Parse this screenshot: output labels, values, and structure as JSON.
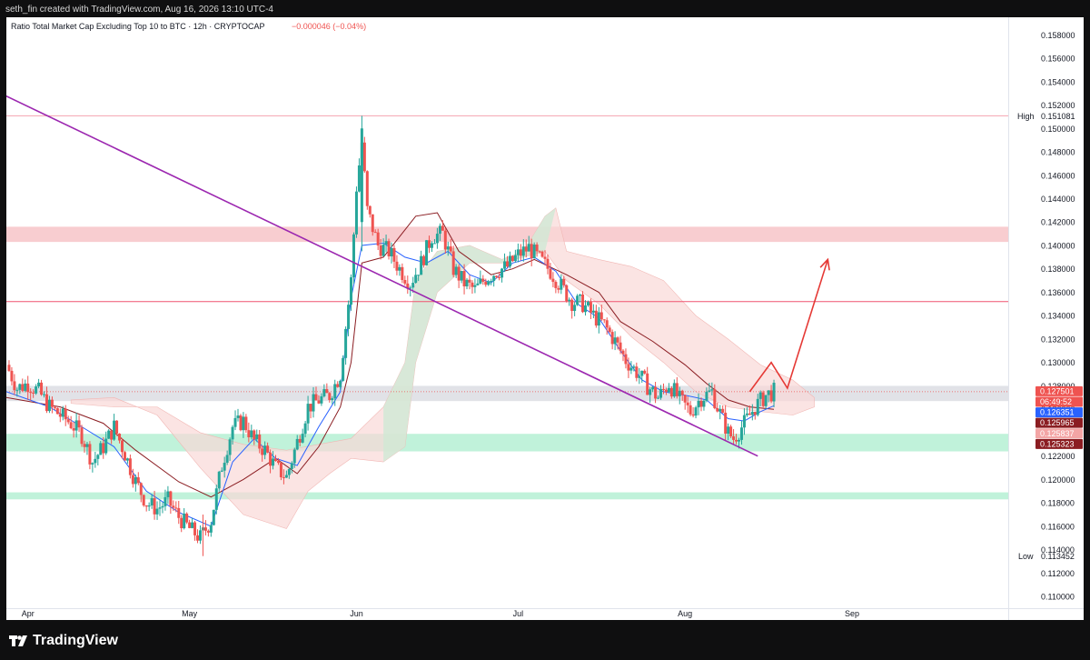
{
  "header": {
    "created_text": "seth_fin created with TradingView.com, Aug 16, 2026 13:10 UTC-4"
  },
  "footer": {
    "brand": "TradingView"
  },
  "colors": {
    "up": "#26a69a",
    "down": "#ef5350",
    "trendline": "#9c27b0",
    "arrow": "#e53935",
    "resistance_zone": "#f7c4c8",
    "support_zone": "#b5f0d4",
    "pivot_zone": "#dcdde3",
    "conversion_line": "#2962ff",
    "base_line": "#8b1d22",
    "cloud_bull": "#cfe9d4",
    "cloud_bear": "#f9d8d7"
  },
  "chart_data": {
    "type": "candlestick",
    "title": "Ratio Total Market Cap Excluding Top 10 to BTC · 12h · CRYPTOCAP",
    "change_text": "−0.000046 (−0.04%)",
    "x_ticks": [
      "Apr",
      "May",
      "Jun",
      "Jul",
      "Aug",
      "Sep"
    ],
    "x_tick_days": [
      0,
      30,
      61,
      91,
      122,
      153
    ],
    "x_range_days": [
      -4,
      182
    ],
    "ylim": [
      0.109,
      0.1595
    ],
    "y_ticks": [
      0.11,
      0.112,
      0.114,
      0.116,
      0.118,
      0.12,
      0.122,
      0.124,
      0.126,
      0.128,
      0.13,
      0.132,
      0.134,
      0.136,
      0.138,
      0.14,
      0.142,
      0.144,
      0.146,
      0.148,
      0.15,
      0.152,
      0.154,
      0.156,
      0.158
    ],
    "y_tick_labels": [
      "0.110000",
      "0.112000",
      "0.114000",
      "0.116000",
      "0.118000",
      "0.120000",
      "0.122000",
      "0.124000",
      "0.126000",
      "0.128000",
      "0.130000",
      "0.132000",
      "0.134000",
      "0.136000",
      "0.138000",
      "0.140000",
      "0.142000",
      "0.144000",
      "0.146000",
      "0.148000",
      "0.150000",
      "0.152000",
      "0.154000",
      "0.156000",
      "0.158000"
    ],
    "high": {
      "label": "High",
      "value_text": "0.151081",
      "value": 0.151081
    },
    "low": {
      "label": "Low",
      "value_text": "0.113452",
      "value": 0.113452
    },
    "price_labels": [
      {
        "text": "0.127501",
        "value": 0.127501,
        "color": "#ef5350"
      },
      {
        "text": "06:49:52",
        "value": 0.1264,
        "color": "#ef5350"
      },
      {
        "text": "0.126351",
        "value": 0.126351,
        "color": "#2962ff"
      },
      {
        "text": "0.125965",
        "value": 0.125965,
        "color": "#8b1d22"
      },
      {
        "text": "0.125837",
        "value": 0.125837,
        "color": "#f3a5a5"
      },
      {
        "text": "0.125323",
        "value": 0.125323,
        "color": "#8b1d22"
      }
    ],
    "horizontal_lines": [
      {
        "value": 0.151081,
        "color": "#f5a3b0"
      },
      {
        "value": 0.1352,
        "color": "#ef5370"
      }
    ],
    "zones": [
      {
        "from": 0.1403,
        "to": 0.1416,
        "color": "#f7c4c8"
      },
      {
        "from": 0.1267,
        "to": 0.128,
        "color": "#dcdde3"
      },
      {
        "from": 0.1224,
        "to": 0.1239,
        "color": "#b5f0d4"
      },
      {
        "from": 0.1183,
        "to": 0.1189,
        "color": "#b5f0d4"
      }
    ],
    "trendline": {
      "from": [
        -6,
        0.1532
      ],
      "to": [
        135.5,
        0.122
      ]
    },
    "projection_arrow": [
      [
        134,
        0.1275
      ],
      [
        138,
        0.13
      ],
      [
        141,
        0.1278
      ],
      [
        148.5,
        0.1388
      ]
    ],
    "close_points": [
      [
        -4,
        0.1298
      ],
      [
        -2,
        0.1278
      ],
      [
        0,
        0.1282
      ],
      [
        2,
        0.1275
      ],
      [
        4,
        0.1262
      ],
      [
        6,
        0.1255
      ],
      [
        8,
        0.1248
      ],
      [
        10,
        0.1238
      ],
      [
        12,
        0.1215
      ],
      [
        14,
        0.1228
      ],
      [
        16,
        0.1245
      ],
      [
        18,
        0.1222
      ],
      [
        20,
        0.1198
      ],
      [
        22,
        0.118
      ],
      [
        24,
        0.1175
      ],
      [
        26,
        0.1182
      ],
      [
        28,
        0.1168
      ],
      [
        30,
        0.1158
      ],
      [
        32,
        0.115
      ],
      [
        34,
        0.1165
      ],
      [
        36,
        0.1212
      ],
      [
        38,
        0.1245
      ],
      [
        40,
        0.125
      ],
      [
        42,
        0.1233
      ],
      [
        44,
        0.1225
      ],
      [
        46,
        0.121
      ],
      [
        48,
        0.1202
      ],
      [
        50,
        0.1232
      ],
      [
        52,
        0.1262
      ],
      [
        54,
        0.1268
      ],
      [
        56,
        0.1272
      ],
      [
        58,
        0.129
      ],
      [
        60,
        0.137
      ],
      [
        61,
        0.145
      ],
      [
        62,
        0.1488
      ],
      [
        63,
        0.143
      ],
      [
        65,
        0.14
      ],
      [
        67,
        0.1395
      ],
      [
        69,
        0.138
      ],
      [
        71,
        0.1368
      ],
      [
        73,
        0.1385
      ],
      [
        75,
        0.1408
      ],
      [
        77,
        0.141
      ],
      [
        79,
        0.138
      ],
      [
        81,
        0.1368
      ],
      [
        83,
        0.1362
      ],
      [
        85,
        0.1372
      ],
      [
        87,
        0.1378
      ],
      [
        89,
        0.1382
      ],
      [
        91,
        0.1392
      ],
      [
        93,
        0.1398
      ],
      [
        95,
        0.1388
      ],
      [
        97,
        0.1378
      ],
      [
        99,
        0.1365
      ],
      [
        101,
        0.1352
      ],
      [
        103,
        0.135
      ],
      [
        105,
        0.134
      ],
      [
        107,
        0.1332
      ],
      [
        109,
        0.1318
      ],
      [
        111,
        0.1302
      ],
      [
        113,
        0.1292
      ],
      [
        115,
        0.128
      ],
      [
        117,
        0.127
      ],
      [
        119,
        0.1282
      ],
      [
        121,
        0.1268
      ],
      [
        123,
        0.1258
      ],
      [
        125,
        0.127
      ],
      [
        127,
        0.1275
      ],
      [
        128,
        0.1262
      ],
      [
        130,
        0.124
      ],
      [
        131,
        0.1235
      ],
      [
        133,
        0.1248
      ],
      [
        135,
        0.1262
      ],
      [
        137,
        0.1272
      ],
      [
        138.5,
        0.1275
      ]
    ],
    "conversion_line_points": [
      [
        -4,
        0.1275
      ],
      [
        4,
        0.1262
      ],
      [
        10,
        0.1245
      ],
      [
        16,
        0.1228
      ],
      [
        22,
        0.119
      ],
      [
        28,
        0.1172
      ],
      [
        34,
        0.116
      ],
      [
        38,
        0.1215
      ],
      [
        42,
        0.1235
      ],
      [
        46,
        0.1218
      ],
      [
        50,
        0.1212
      ],
      [
        54,
        0.1245
      ],
      [
        58,
        0.1275
      ],
      [
        60,
        0.1355
      ],
      [
        62,
        0.14
      ],
      [
        66,
        0.1402
      ],
      [
        70,
        0.139
      ],
      [
        74,
        0.1385
      ],
      [
        78,
        0.1395
      ],
      [
        82,
        0.1375
      ],
      [
        86,
        0.1368
      ],
      [
        90,
        0.1385
      ],
      [
        94,
        0.139
      ],
      [
        98,
        0.1378
      ],
      [
        102,
        0.135
      ],
      [
        106,
        0.1338
      ],
      [
        110,
        0.131
      ],
      [
        114,
        0.1285
      ],
      [
        118,
        0.1275
      ],
      [
        122,
        0.1272
      ],
      [
        126,
        0.1268
      ],
      [
        130,
        0.1252
      ],
      [
        133,
        0.125
      ],
      [
        136,
        0.1258
      ],
      [
        138.5,
        0.1263
      ]
    ],
    "base_line_points": [
      [
        -4,
        0.127
      ],
      [
        6,
        0.1262
      ],
      [
        14,
        0.1248
      ],
      [
        20,
        0.1225
      ],
      [
        28,
        0.1198
      ],
      [
        34,
        0.1185
      ],
      [
        40,
        0.12
      ],
      [
        46,
        0.1218
      ],
      [
        50,
        0.1205
      ],
      [
        54,
        0.1228
      ],
      [
        58,
        0.1262
      ],
      [
        60,
        0.13
      ],
      [
        62,
        0.1385
      ],
      [
        66,
        0.139
      ],
      [
        72,
        0.1425
      ],
      [
        76,
        0.1428
      ],
      [
        80,
        0.1395
      ],
      [
        86,
        0.1375
      ],
      [
        90,
        0.138
      ],
      [
        94,
        0.1388
      ],
      [
        100,
        0.1375
      ],
      [
        106,
        0.136
      ],
      [
        110,
        0.1335
      ],
      [
        116,
        0.1318
      ],
      [
        122,
        0.1298
      ],
      [
        126,
        0.1282
      ],
      [
        130,
        0.1268
      ],
      [
        134,
        0.1262
      ],
      [
        138.5,
        0.126
      ]
    ],
    "cloud_top": [
      [
        8,
        0.1265
      ],
      [
        16,
        0.1262
      ],
      [
        24,
        0.1262
      ],
      [
        32,
        0.124
      ],
      [
        40,
        0.123
      ],
      [
        48,
        0.1225
      ],
      [
        54,
        0.123
      ],
      [
        60,
        0.1235
      ],
      [
        66,
        0.1262
      ],
      [
        70,
        0.13
      ],
      [
        72,
        0.137
      ],
      [
        76,
        0.1395
      ],
      [
        82,
        0.14
      ],
      [
        88,
        0.1388
      ],
      [
        92,
        0.1395
      ],
      [
        96,
        0.1425
      ],
      [
        98,
        0.1432
      ],
      [
        100,
        0.1395
      ],
      [
        106,
        0.1388
      ],
      [
        112,
        0.1382
      ],
      [
        118,
        0.137
      ],
      [
        124,
        0.134
      ],
      [
        130,
        0.132
      ],
      [
        136,
        0.1298
      ],
      [
        142,
        0.1285
      ],
      [
        146,
        0.127
      ]
    ],
    "cloud_bottom": [
      [
        8,
        0.1268
      ],
      [
        16,
        0.127
      ],
      [
        24,
        0.1255
      ],
      [
        32,
        0.121
      ],
      [
        40,
        0.117
      ],
      [
        48,
        0.1158
      ],
      [
        52,
        0.119
      ],
      [
        56,
        0.1205
      ],
      [
        60,
        0.1218
      ],
      [
        66,
        0.1215
      ],
      [
        70,
        0.1228
      ],
      [
        72,
        0.13
      ],
      [
        76,
        0.136
      ],
      [
        82,
        0.1385
      ],
      [
        88,
        0.1385
      ],
      [
        92,
        0.139
      ],
      [
        96,
        0.1395
      ],
      [
        100,
        0.137
      ],
      [
        106,
        0.135
      ],
      [
        112,
        0.1322
      ],
      [
        118,
        0.13
      ],
      [
        124,
        0.1275
      ],
      [
        130,
        0.1262
      ],
      [
        136,
        0.1258
      ],
      [
        142,
        0.1255
      ],
      [
        146,
        0.1262
      ]
    ]
  }
}
